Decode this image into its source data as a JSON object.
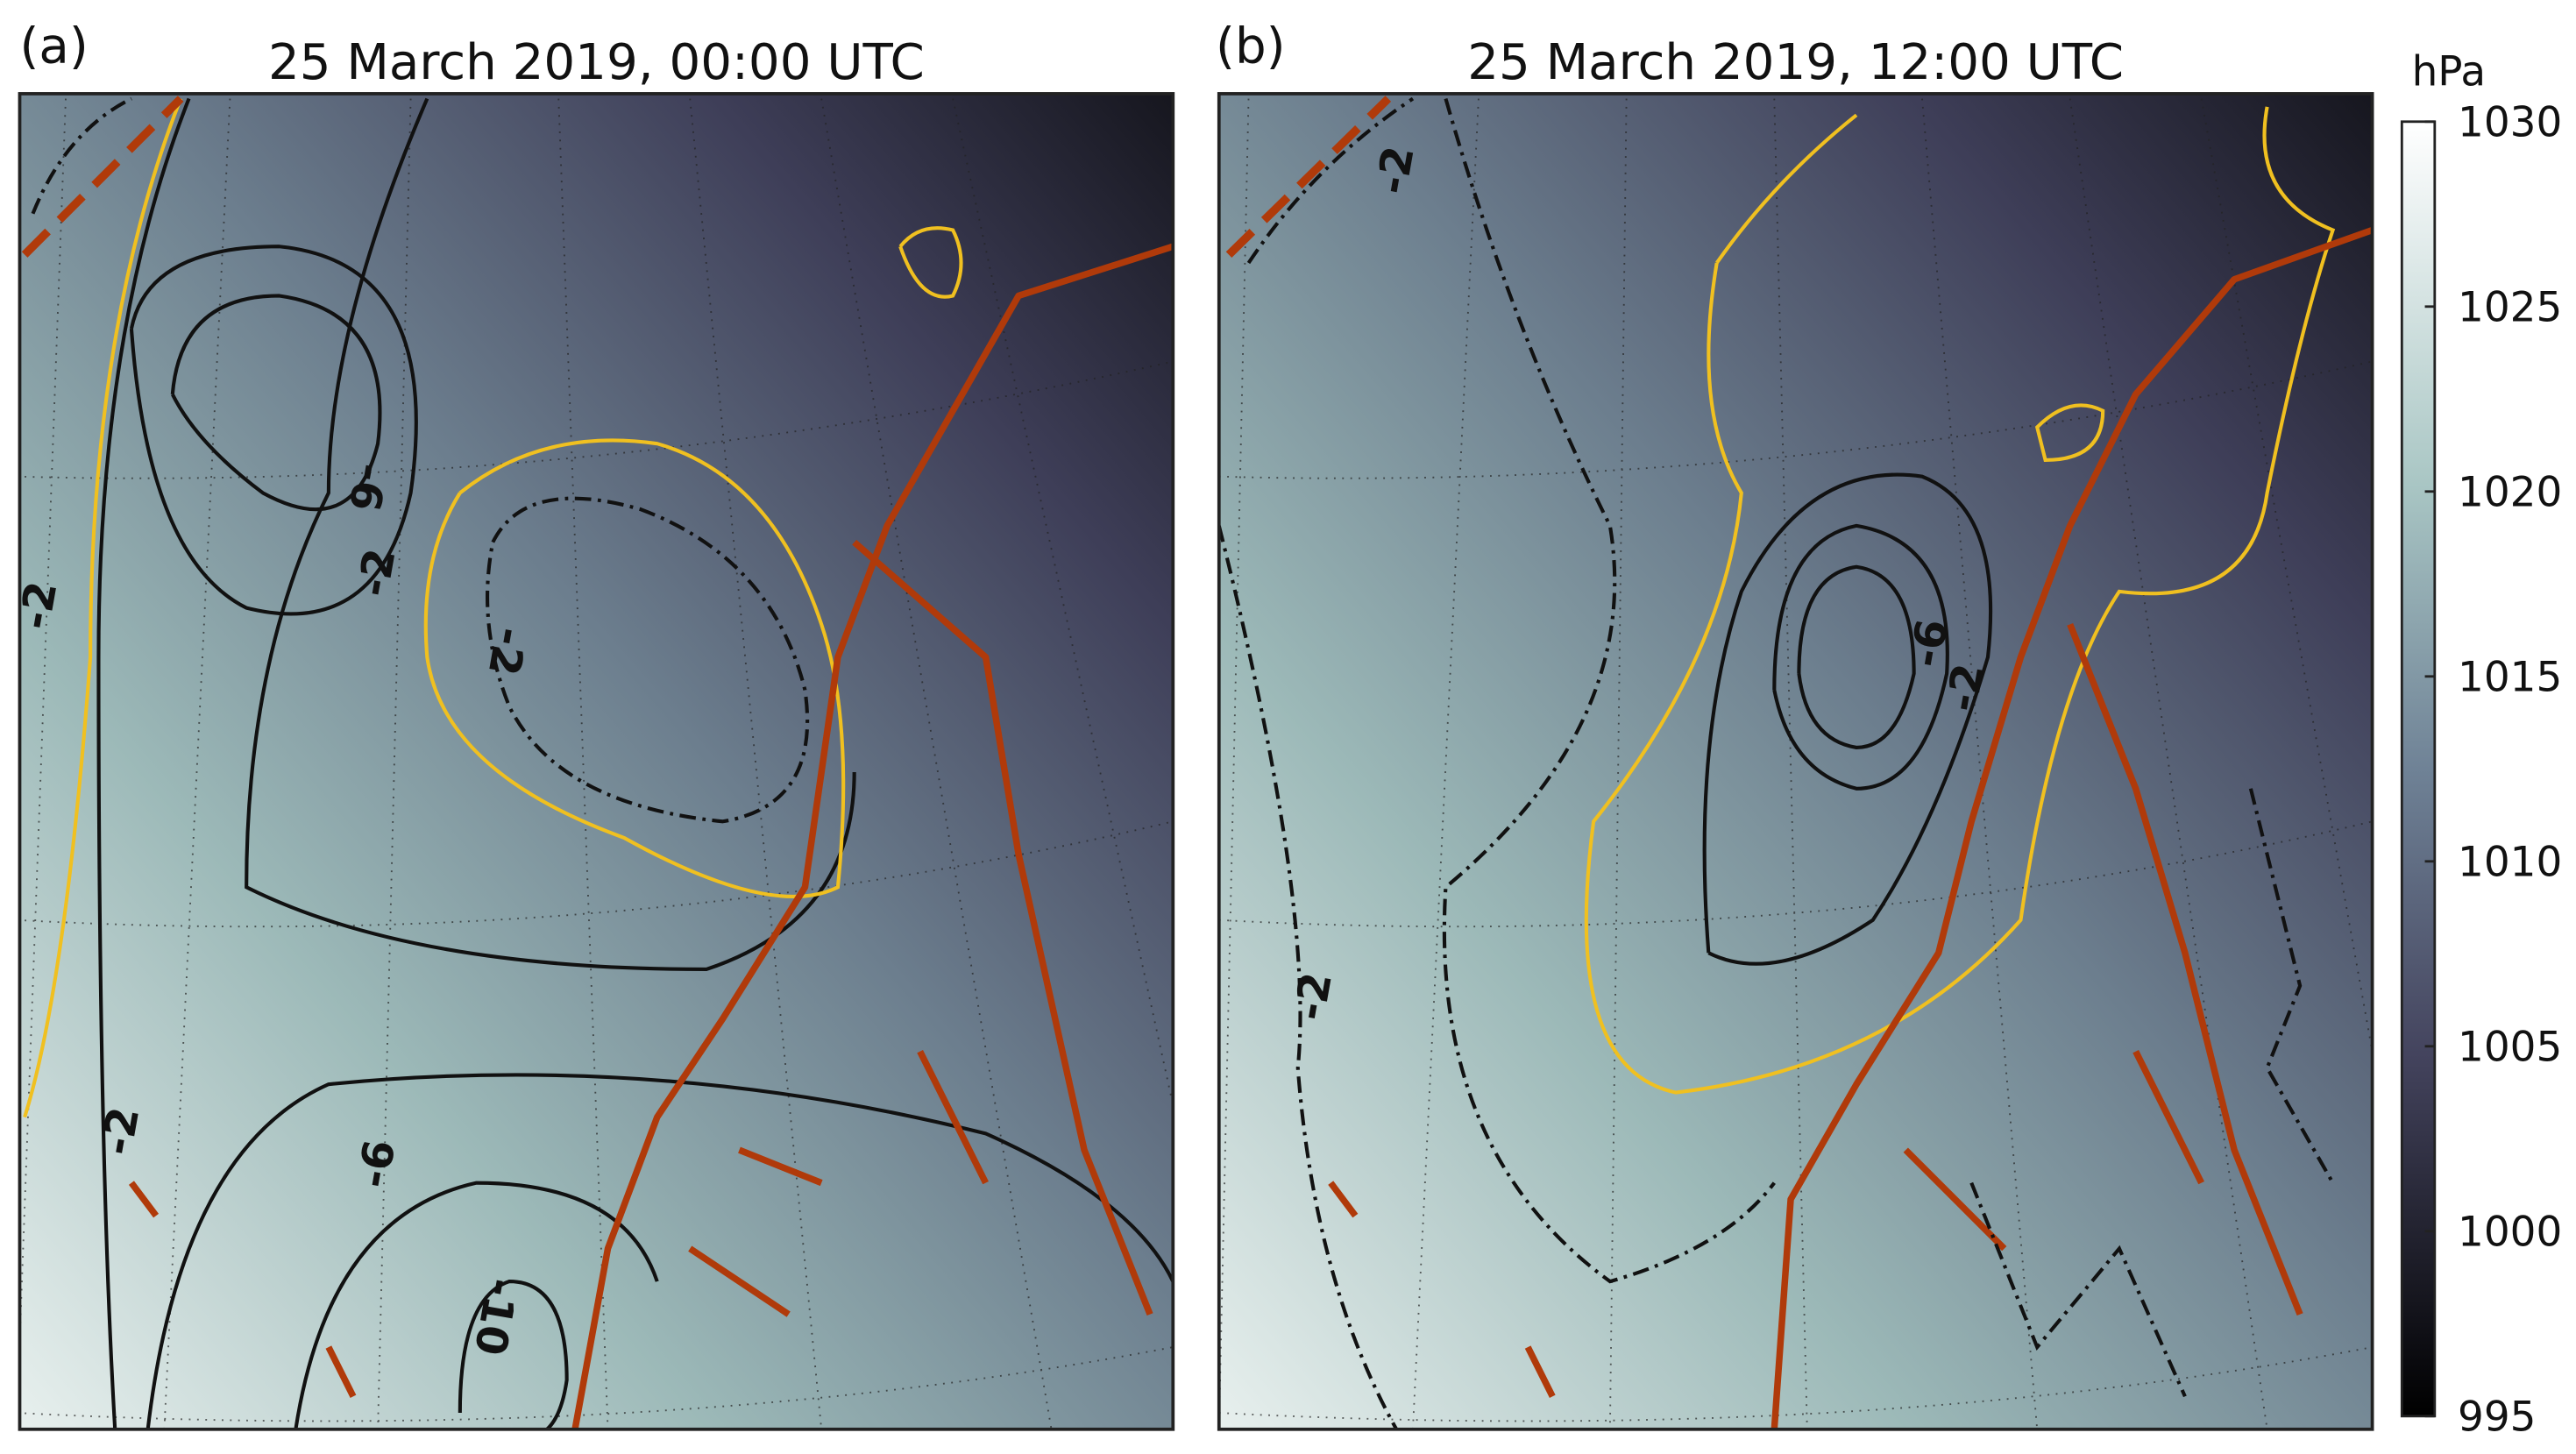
{
  "panels": [
    {
      "label": "(a)",
      "title": "25 March 2019, 00:00 UTC",
      "contour_labels": [
        -2,
        -6,
        -2,
        -2,
        -2,
        -6,
        -10
      ]
    },
    {
      "label": "(b)",
      "title": "25 March 2019, 12:00 UTC",
      "contour_labels": [
        -2,
        -6,
        -2,
        -2
      ]
    }
  ],
  "colorbar": {
    "unit": "hPa",
    "lim": [
      995,
      1030
    ],
    "ticks": [
      995,
      1000,
      1005,
      1010,
      1015,
      1020,
      1025,
      1030
    ]
  }
}
